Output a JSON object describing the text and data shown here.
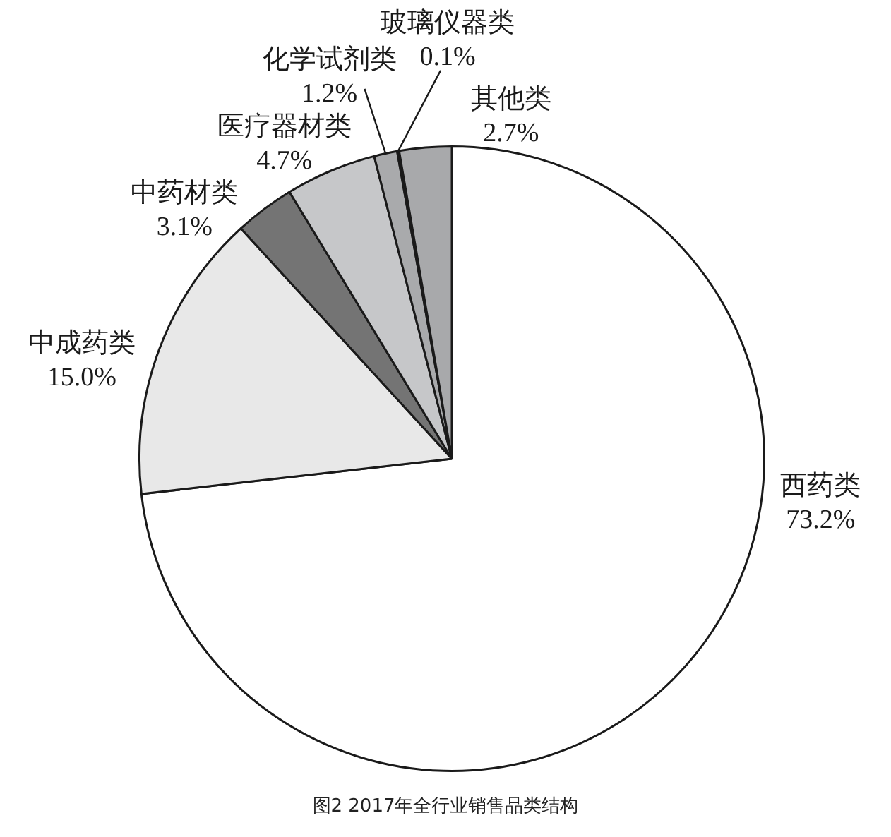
{
  "chart_data": {
    "type": "pie",
    "categories": [
      "西药类",
      "中成药类",
      "中药材类",
      "医疗器材类",
      "化学试剂类",
      "玻璃仪器类",
      "其他类"
    ],
    "values": [
      73.2,
      15.0,
      3.1,
      4.7,
      1.2,
      0.1,
      2.7
    ],
    "value_labels": [
      "73.2%",
      "15.0%",
      "3.1%",
      "4.7%",
      "1.2%",
      "0.1%",
      "2.7%"
    ],
    "colors": [
      "#ffffff",
      "#e8e8e8",
      "#747474",
      "#c6c7c9",
      "#a9aaac",
      "#8c8c8c",
      "#a8a9ab"
    ],
    "annotations": [
      "图2 2017年全行业销售品类结构"
    ]
  }
}
